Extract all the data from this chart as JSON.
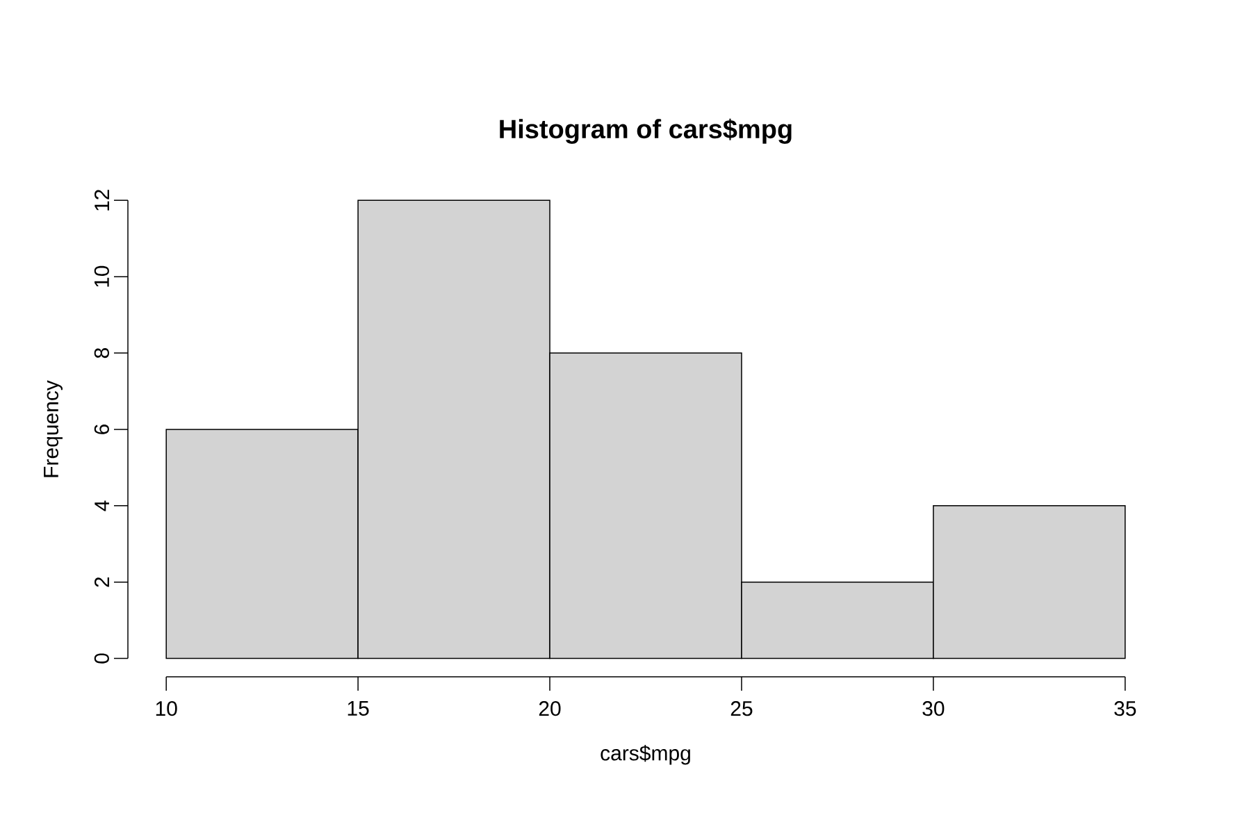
{
  "chart_data": {
    "type": "histogram",
    "title": "Histogram of cars$mpg",
    "xlabel": "cars$mpg",
    "ylabel": "Frequency",
    "bins": [
      10,
      15,
      20,
      25,
      30,
      35
    ],
    "values": [
      6,
      12,
      8,
      2,
      4
    ],
    "color": "#d3d3d3",
    "xlim": [
      10,
      35
    ],
    "xticks": [
      10,
      15,
      20,
      25,
      30,
      35
    ],
    "ylim": [
      0,
      12
    ],
    "yticks": [
      0,
      2,
      4,
      6,
      8,
      10,
      12
    ],
    "grid": false
  }
}
